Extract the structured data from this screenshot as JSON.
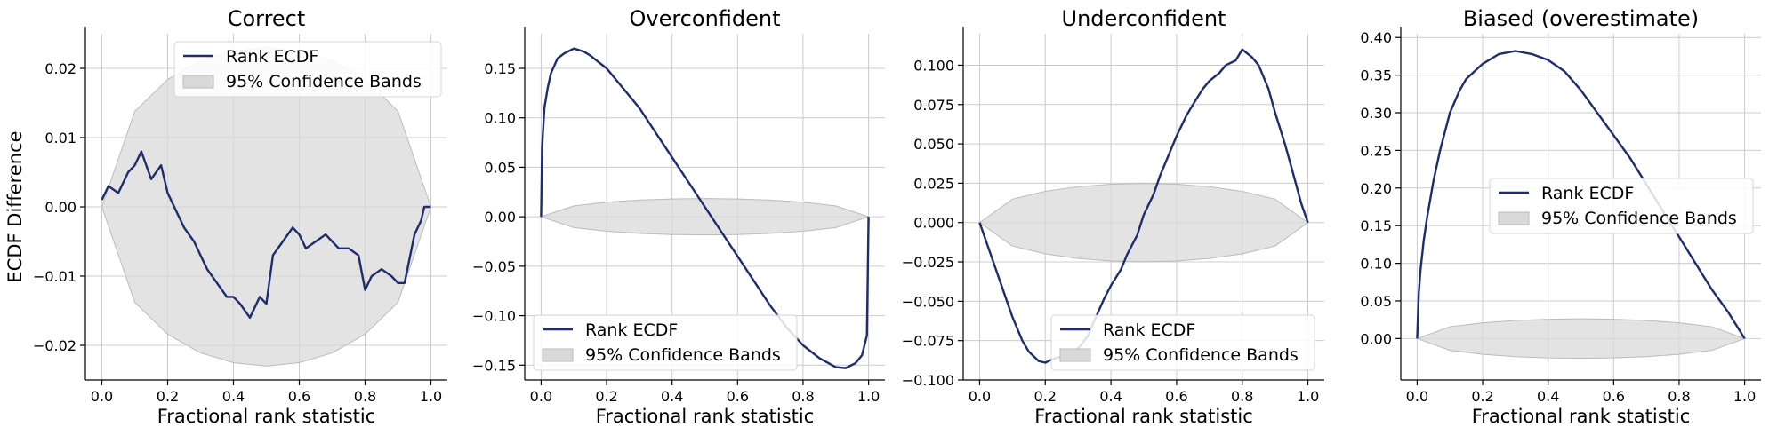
{
  "chart_data": [
    {
      "type": "line",
      "title": "Correct",
      "xlabel": "Fractional rank statistic",
      "ylabel": "ECDF Difference",
      "xlim": [
        -0.05,
        1.05
      ],
      "ylim": [
        -0.025,
        0.025
      ],
      "xticks": [
        "0.0",
        "0.2",
        "0.4",
        "0.6",
        "0.8",
        "1.0"
      ],
      "yticks": [
        "-0.02",
        "-0.01",
        "0.00",
        "0.01",
        "0.02"
      ],
      "grid": true,
      "legend_position": "top-center",
      "line_color": "#1f2d6e",
      "band_color": "#d9d9d9",
      "series": [
        {
          "name": "Rank ECDF",
          "x": [
            0.0,
            0.02,
            0.05,
            0.08,
            0.1,
            0.12,
            0.15,
            0.18,
            0.2,
            0.22,
            0.25,
            0.28,
            0.3,
            0.32,
            0.35,
            0.38,
            0.4,
            0.42,
            0.45,
            0.48,
            0.5,
            0.52,
            0.55,
            0.58,
            0.6,
            0.62,
            0.65,
            0.68,
            0.7,
            0.72,
            0.75,
            0.78,
            0.8,
            0.82,
            0.85,
            0.88,
            0.9,
            0.92,
            0.95,
            0.97,
            0.98,
            1.0
          ],
          "y": [
            0.001,
            0.003,
            0.002,
            0.005,
            0.006,
            0.008,
            0.004,
            0.006,
            0.002,
            0.0,
            -0.003,
            -0.005,
            -0.007,
            -0.009,
            -0.011,
            -0.013,
            -0.013,
            -0.014,
            -0.016,
            -0.013,
            -0.014,
            -0.007,
            -0.005,
            -0.003,
            -0.004,
            -0.006,
            -0.005,
            -0.004,
            -0.005,
            -0.006,
            -0.006,
            -0.007,
            -0.012,
            -0.01,
            -0.009,
            -0.01,
            -0.011,
            -0.011,
            -0.004,
            -0.002,
            0.0,
            0.0
          ]
        },
        {
          "name": "95% Confidence Bands",
          "x": [
            0.0,
            0.1,
            0.2,
            0.3,
            0.4,
            0.5,
            0.6,
            0.7,
            0.8,
            0.9,
            1.0
          ],
          "upper": [
            0.0,
            0.0138,
            0.0184,
            0.0211,
            0.0225,
            0.023,
            0.0225,
            0.0211,
            0.0184,
            0.0138,
            0.0
          ],
          "lower": [
            0.0,
            -0.0138,
            -0.0184,
            -0.0211,
            -0.0225,
            -0.023,
            -0.0225,
            -0.0211,
            -0.0184,
            -0.0138,
            0.0
          ]
        }
      ]
    },
    {
      "type": "line",
      "title": "Overconfident",
      "xlabel": "Fractional rank statistic",
      "ylabel": "",
      "xlim": [
        -0.05,
        1.05
      ],
      "ylim": [
        -0.165,
        0.185
      ],
      "xticks": [
        "0.0",
        "0.2",
        "0.4",
        "0.6",
        "0.8",
        "1.0"
      ],
      "yticks": [
        "-0.15",
        "-0.10",
        "-0.05",
        "0.00",
        "0.05",
        "0.10",
        "0.15"
      ],
      "grid": true,
      "legend_position": "bottom-left",
      "line_color": "#1f2d6e",
      "band_color": "#d9d9d9",
      "series": [
        {
          "name": "Rank ECDF",
          "x": [
            0.0,
            0.003,
            0.01,
            0.02,
            0.03,
            0.05,
            0.07,
            0.1,
            0.13,
            0.15,
            0.2,
            0.25,
            0.3,
            0.35,
            0.4,
            0.45,
            0.5,
            0.55,
            0.6,
            0.65,
            0.7,
            0.75,
            0.8,
            0.85,
            0.9,
            0.93,
            0.96,
            0.98,
            0.995,
            1.0
          ],
          "y": [
            0.0,
            0.07,
            0.11,
            0.13,
            0.145,
            0.16,
            0.165,
            0.17,
            0.167,
            0.163,
            0.15,
            0.13,
            0.11,
            0.085,
            0.06,
            0.035,
            0.01,
            -0.015,
            -0.04,
            -0.065,
            -0.09,
            -0.112,
            -0.13,
            -0.143,
            -0.152,
            -0.153,
            -0.148,
            -0.14,
            -0.12,
            0.0
          ]
        },
        {
          "name": "95% Confidence Bands",
          "x": [
            0.0,
            0.1,
            0.2,
            0.3,
            0.4,
            0.5,
            0.6,
            0.7,
            0.8,
            0.9,
            1.0
          ],
          "upper": [
            0.0,
            0.011,
            0.0147,
            0.0168,
            0.018,
            0.0184,
            0.018,
            0.0168,
            0.0147,
            0.011,
            0.0
          ],
          "lower": [
            0.0,
            -0.011,
            -0.0147,
            -0.0168,
            -0.018,
            -0.0184,
            -0.018,
            -0.0168,
            -0.0147,
            -0.011,
            0.0
          ]
        }
      ]
    },
    {
      "type": "line",
      "title": "Underconfident",
      "xlabel": "Fractional rank statistic",
      "ylabel": "",
      "xlim": [
        -0.05,
        1.05
      ],
      "ylim": [
        -0.1,
        0.12
      ],
      "xticks": [
        "0.0",
        "0.2",
        "0.4",
        "0.6",
        "0.8",
        "1.0"
      ],
      "yticks": [
        "-0.100",
        "-0.075",
        "-0.050",
        "-0.025",
        "0.000",
        "0.025",
        "0.050",
        "0.075",
        "0.100"
      ],
      "grid": true,
      "legend_position": "bottom-right",
      "line_color": "#1f2d6e",
      "band_color": "#d9d9d9",
      "series": [
        {
          "name": "Rank ECDF",
          "x": [
            0.0,
            0.02,
            0.05,
            0.08,
            0.1,
            0.13,
            0.15,
            0.18,
            0.2,
            0.22,
            0.25,
            0.28,
            0.3,
            0.33,
            0.35,
            0.38,
            0.4,
            0.43,
            0.45,
            0.48,
            0.5,
            0.53,
            0.55,
            0.58,
            0.6,
            0.63,
            0.65,
            0.68,
            0.7,
            0.73,
            0.75,
            0.78,
            0.8,
            0.83,
            0.85,
            0.88,
            0.9,
            0.93,
            0.95,
            0.98,
            1.0
          ],
          "y": [
            0.0,
            -0.012,
            -0.03,
            -0.048,
            -0.06,
            -0.075,
            -0.082,
            -0.088,
            -0.089,
            -0.087,
            -0.085,
            -0.083,
            -0.08,
            -0.072,
            -0.062,
            -0.048,
            -0.04,
            -0.03,
            -0.02,
            -0.008,
            0.005,
            0.018,
            0.03,
            0.045,
            0.055,
            0.068,
            0.075,
            0.085,
            0.09,
            0.095,
            0.1,
            0.103,
            0.11,
            0.105,
            0.1,
            0.085,
            0.07,
            0.05,
            0.035,
            0.012,
            0.0
          ]
        },
        {
          "name": "95% Confidence Bands",
          "x": [
            0.0,
            0.1,
            0.2,
            0.3,
            0.4,
            0.5,
            0.6,
            0.7,
            0.8,
            0.9,
            1.0
          ],
          "upper": [
            0.0,
            0.0149,
            0.0199,
            0.0228,
            0.0244,
            0.0249,
            0.0244,
            0.0228,
            0.0199,
            0.0149,
            0.0
          ],
          "lower": [
            0.0,
            -0.0149,
            -0.0199,
            -0.0228,
            -0.0244,
            -0.0249,
            -0.0244,
            -0.0228,
            -0.0199,
            -0.0149,
            0.0
          ]
        }
      ]
    },
    {
      "type": "line",
      "title": "Biased (overestimate)",
      "xlabel": "Fractional rank statistic",
      "ylabel": "",
      "xlim": [
        -0.05,
        1.05
      ],
      "ylim": [
        -0.055,
        0.405
      ],
      "xticks": [
        "0.0",
        "0.2",
        "0.4",
        "0.6",
        "0.8",
        "1.0"
      ],
      "yticks": [
        "0.00",
        "0.05",
        "0.10",
        "0.15",
        "0.20",
        "0.25",
        "0.30",
        "0.35",
        "0.40"
      ],
      "grid": true,
      "legend_position": "center-right",
      "line_color": "#1f2d6e",
      "band_color": "#d9d9d9",
      "series": [
        {
          "name": "Rank ECDF",
          "x": [
            0.0,
            0.005,
            0.01,
            0.02,
            0.03,
            0.05,
            0.07,
            0.1,
            0.13,
            0.15,
            0.2,
            0.25,
            0.3,
            0.35,
            0.4,
            0.45,
            0.5,
            0.55,
            0.6,
            0.65,
            0.7,
            0.75,
            0.8,
            0.85,
            0.9,
            0.95,
            1.0
          ],
          "y": [
            0.0,
            0.06,
            0.09,
            0.13,
            0.16,
            0.21,
            0.25,
            0.3,
            0.33,
            0.345,
            0.365,
            0.378,
            0.382,
            0.378,
            0.37,
            0.355,
            0.33,
            0.3,
            0.27,
            0.24,
            0.205,
            0.17,
            0.135,
            0.1,
            0.065,
            0.035,
            0.0
          ]
        },
        {
          "name": "95% Confidence Bands",
          "x": [
            0.0,
            0.1,
            0.2,
            0.3,
            0.4,
            0.5,
            0.6,
            0.7,
            0.8,
            0.9,
            1.0
          ],
          "upper": [
            0.0,
            0.0157,
            0.0209,
            0.024,
            0.0256,
            0.0262,
            0.0256,
            0.024,
            0.0209,
            0.0157,
            0.0
          ],
          "lower": [
            0.0,
            -0.0157,
            -0.0209,
            -0.024,
            -0.0256,
            -0.0262,
            -0.0256,
            -0.024,
            -0.0209,
            -0.0157,
            0.0
          ]
        }
      ]
    }
  ]
}
